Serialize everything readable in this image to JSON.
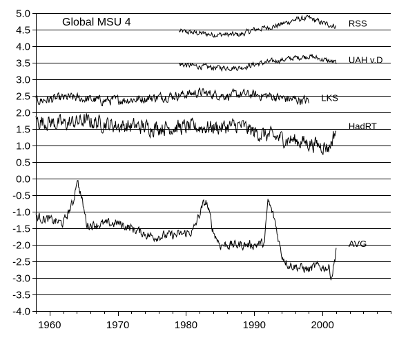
{
  "chart_data": {
    "type": "line",
    "title": "Global MSU 4",
    "xlabel": "",
    "ylabel": "",
    "xlim": [
      1958,
      2010
    ],
    "ylim": [
      -4.0,
      5.0
    ],
    "x_ticks": [
      1960,
      1970,
      1980,
      1990,
      2000
    ],
    "x_tick_labels": [
      "1960",
      "1970",
      "1980",
      "1990",
      "2000"
    ],
    "y_ticks": [
      5.0,
      4.5,
      4.0,
      3.5,
      3.0,
      2.5,
      2.0,
      1.5,
      1.0,
      0.5,
      0.0,
      -0.5,
      -1.0,
      -1.5,
      -2.0,
      -2.5,
      -3.0,
      -3.5,
      -4.0
    ],
    "y_tick_labels": [
      "5.0",
      "4.5",
      "4.0",
      "3.5",
      "3.0",
      "2.5",
      "2.0",
      "1.5",
      "1.0",
      "0.5",
      "0.0",
      "-0.5",
      "-1.0",
      "-1.5",
      "-2.0",
      "-2.5",
      "-3.0",
      "-3.5",
      "-4.0"
    ],
    "grid": {
      "horizontal": true,
      "vertical": false
    },
    "line_color": "#000000",
    "grid_color": "#000000",
    "series": [
      {
        "name": "RSS",
        "noise": 0.07,
        "points": [
          [
            1979.0,
            4.45
          ],
          [
            1984.0,
            4.35
          ],
          [
            1988.0,
            4.35
          ],
          [
            1990.0,
            4.5
          ],
          [
            1993.0,
            4.6
          ],
          [
            1996.0,
            4.8
          ],
          [
            1998.0,
            4.85
          ],
          [
            2000.0,
            4.7
          ],
          [
            2002.0,
            4.6
          ]
        ]
      },
      {
        "name": "UAH v.D",
        "noise": 0.07,
        "points": [
          [
            1979.0,
            3.45
          ],
          [
            1984.0,
            3.35
          ],
          [
            1988.0,
            3.35
          ],
          [
            1990.0,
            3.45
          ],
          [
            1993.0,
            3.55
          ],
          [
            1996.0,
            3.65
          ],
          [
            1998.0,
            3.7
          ],
          [
            2000.0,
            3.6
          ],
          [
            2002.0,
            3.5
          ]
        ]
      },
      {
        "name": "LKS",
        "noise": 0.12,
        "points": [
          [
            1958.0,
            2.35
          ],
          [
            1963.0,
            2.45
          ],
          [
            1968.0,
            2.35
          ],
          [
            1973.0,
            2.4
          ],
          [
            1978.0,
            2.5
          ],
          [
            1982.0,
            2.6
          ],
          [
            1986.0,
            2.5
          ],
          [
            1988.0,
            2.55
          ],
          [
            1992.0,
            2.5
          ],
          [
            1995.0,
            2.4
          ],
          [
            1998.0,
            2.35
          ]
        ]
      },
      {
        "name": "HadRT",
        "noise": 0.2,
        "points": [
          [
            1958.0,
            1.75
          ],
          [
            1962.0,
            1.65
          ],
          [
            1965.0,
            1.75
          ],
          [
            1970.0,
            1.6
          ],
          [
            1975.0,
            1.55
          ],
          [
            1980.0,
            1.55
          ],
          [
            1985.0,
            1.55
          ],
          [
            1988.0,
            1.6
          ],
          [
            1990.0,
            1.4
          ],
          [
            1993.0,
            1.25
          ],
          [
            1996.0,
            1.15
          ],
          [
            2000.0,
            1.0
          ],
          [
            2001.0,
            0.95
          ],
          [
            2002.0,
            1.5
          ]
        ]
      },
      {
        "name": "AVG",
        "noise": 0.12,
        "points": [
          [
            1958.0,
            -1.15
          ],
          [
            1962.0,
            -1.35
          ],
          [
            1963.5,
            -0.7
          ],
          [
            1964.0,
            0.0
          ],
          [
            1964.6,
            -0.5
          ],
          [
            1965.5,
            -1.4
          ],
          [
            1970.0,
            -1.35
          ],
          [
            1972.0,
            -1.5
          ],
          [
            1975.0,
            -1.75
          ],
          [
            1979.0,
            -1.7
          ],
          [
            1981.0,
            -1.6
          ],
          [
            1982.5,
            -0.8
          ],
          [
            1983.0,
            -0.7
          ],
          [
            1984.0,
            -1.6
          ],
          [
            1985.0,
            -2.0
          ],
          [
            1988.0,
            -2.0
          ],
          [
            1990.0,
            -2.0
          ],
          [
            1991.5,
            -1.95
          ],
          [
            1992.0,
            -0.65
          ],
          [
            1993.0,
            -1.25
          ],
          [
            1994.0,
            -2.3
          ],
          [
            1995.0,
            -2.6
          ],
          [
            1998.0,
            -2.75
          ],
          [
            1999.0,
            -2.65
          ],
          [
            2001.0,
            -2.7
          ],
          [
            2001.3,
            -3.0
          ],
          [
            2001.8,
            -2.45
          ],
          [
            2002.0,
            -2.05
          ]
        ]
      }
    ],
    "series_label_positions": [
      "right-of-line",
      "right-of-line",
      "right-of-line",
      "right-of-line",
      "right-of-line"
    ],
    "annotations": [
      "RSS",
      "UAH v.D",
      "LKS",
      "HadRT",
      "AVG"
    ]
  }
}
